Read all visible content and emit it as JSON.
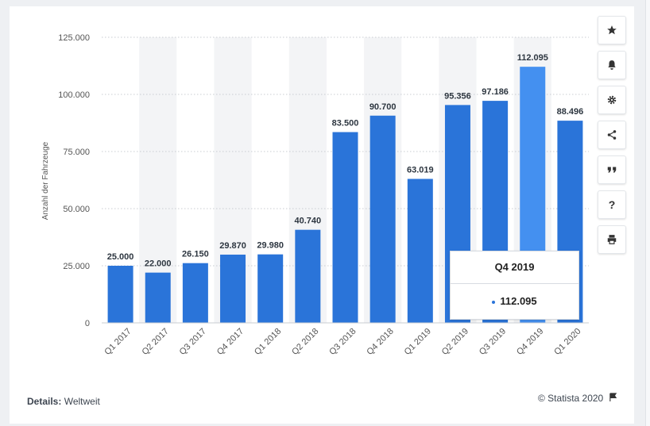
{
  "chart_data": {
    "type": "bar",
    "categories": [
      "Q1 2017",
      "Q2 2017",
      "Q3 2017",
      "Q4 2017",
      "Q1 2018",
      "Q2 2018",
      "Q3 2018",
      "Q4 2018",
      "Q1 2019",
      "Q2 2019",
      "Q3 2019",
      "Q4 2019",
      "Q1 2020"
    ],
    "values": [
      25000,
      22000,
      26150,
      29870,
      29980,
      40740,
      83500,
      90700,
      63019,
      95356,
      97186,
      112095,
      88496
    ],
    "value_labels": [
      "25.000",
      "22.000",
      "26.150",
      "29.870",
      "29.980",
      "40.740",
      "83.500",
      "90.700",
      "63.019",
      "95.356",
      "97.186",
      "112.095",
      "88.496"
    ],
    "ylabel": "Anzahl der Fahrzeuge",
    "yticks": [
      0,
      25000,
      50000,
      75000,
      100000,
      125000
    ],
    "ytick_labels": [
      "0",
      "25.000",
      "50.000",
      "75.000",
      "100.000",
      "125.000"
    ],
    "ylim": [
      0,
      125000
    ],
    "grid": true,
    "highlighted_index": 11,
    "colors": {
      "bar": "#2a74d9",
      "bar_highlight": "#4490f0",
      "band": "#f3f4f6"
    }
  },
  "tooltip": {
    "title": "Q4 2019",
    "value": "112.095",
    "dot_color": "#2a74d9"
  },
  "footer": {
    "details_label": "Details:",
    "details_value": "Weltweit",
    "copyright": "© Statista 2020"
  },
  "toolbar": [
    "star-icon",
    "bell-icon",
    "gear-icon",
    "share-icon",
    "quote-icon",
    "help-icon",
    "print-icon"
  ]
}
